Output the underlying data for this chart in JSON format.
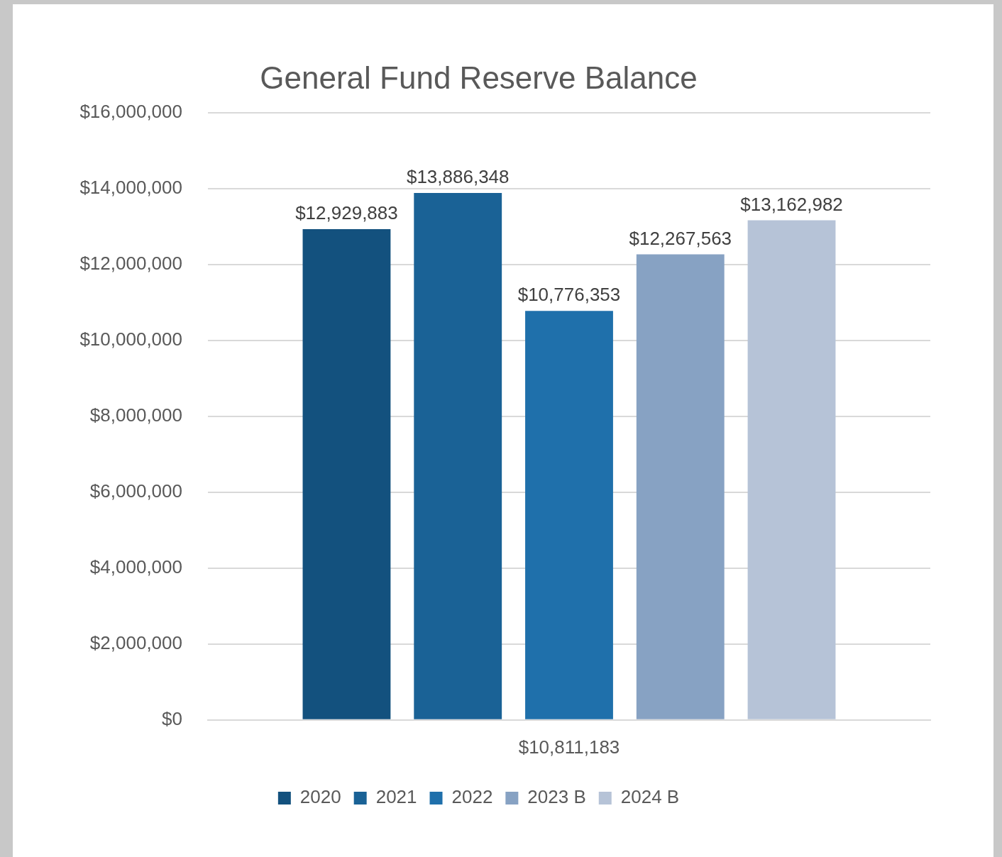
{
  "chart_data": {
    "type": "bar",
    "title": "General Fund Reserve Balance",
    "categories": [
      "$10,811,183"
    ],
    "series": [
      {
        "name": "2020",
        "color": "#13517e",
        "values": [
          12929883
        ],
        "value_labels": [
          "$12,929,883"
        ]
      },
      {
        "name": "2021",
        "color": "#1a6296",
        "values": [
          13886348
        ],
        "value_labels": [
          "$13,886,348"
        ]
      },
      {
        "name": "2022",
        "color": "#1f70ab",
        "values": [
          10776353
        ],
        "value_labels": [
          "$10,776,353"
        ]
      },
      {
        "name": "2023 B",
        "color": "#87a2c3",
        "values": [
          12267563
        ],
        "value_labels": [
          "$12,267,563"
        ]
      },
      {
        "name": "2024 B",
        "color": "#b6c3d7",
        "values": [
          13162982
        ],
        "value_labels": [
          "$13,162,982"
        ]
      }
    ],
    "ylim": [
      0,
      16000000
    ],
    "yticks": [
      {
        "value": 0,
        "label": "$0"
      },
      {
        "value": 2000000,
        "label": "$2,000,000"
      },
      {
        "value": 4000000,
        "label": "$4,000,000"
      },
      {
        "value": 6000000,
        "label": "$6,000,000"
      },
      {
        "value": 8000000,
        "label": "$8,000,000"
      },
      {
        "value": 10000000,
        "label": "$10,000,000"
      },
      {
        "value": 12000000,
        "label": "$12,000,000"
      },
      {
        "value": 14000000,
        "label": "$14,000,000"
      },
      {
        "value": 16000000,
        "label": "$16,000,000"
      }
    ],
    "grid": "y",
    "legend": "bottom"
  }
}
